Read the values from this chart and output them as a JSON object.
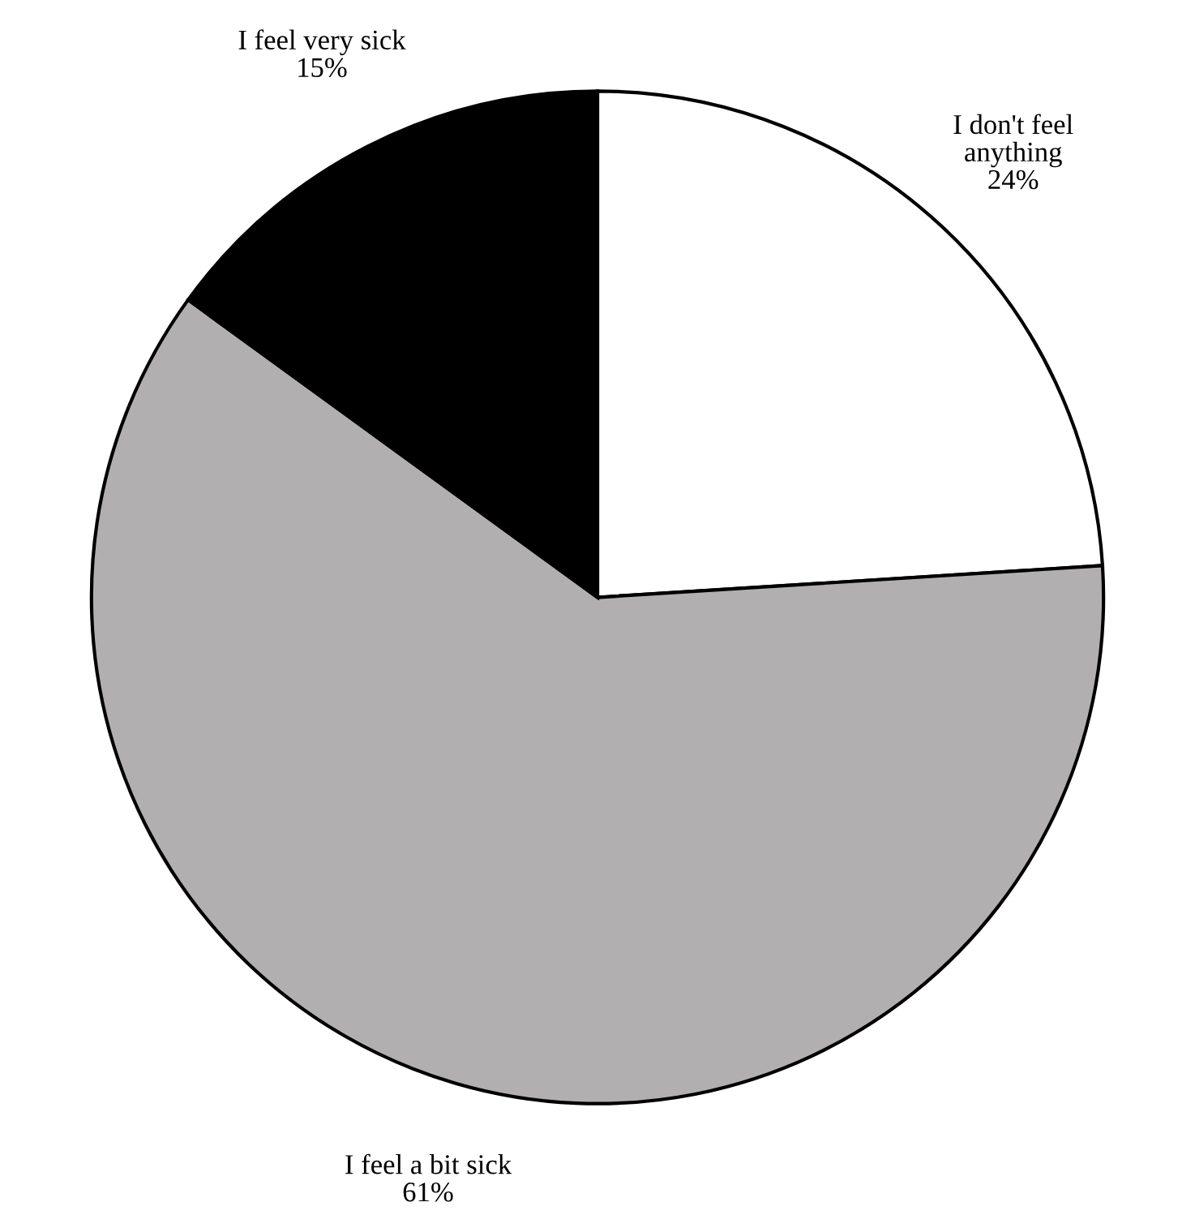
{
  "chart_data": {
    "type": "pie",
    "categories": [
      "I don't feel\nanything",
      "I feel a bit sick",
      "I feel very sick"
    ],
    "values": [
      24,
      61,
      15
    ],
    "colors": [
      "#ffffff",
      "#b1afaf",
      "#000000"
    ],
    "value_labels": [
      "24%",
      "61%",
      "15%"
    ],
    "legend": false
  }
}
